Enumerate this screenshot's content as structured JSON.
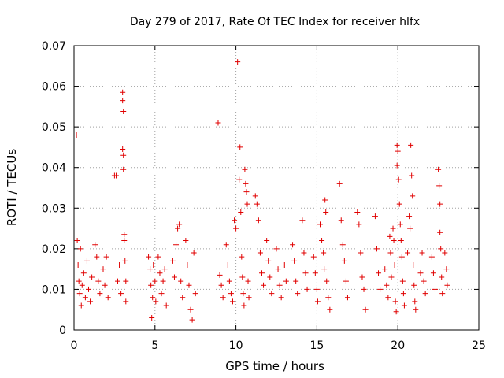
{
  "chart_data": {
    "type": "scatter",
    "title": "Day 279 of 2017, Rate Of TEC Index for receiver hlfx",
    "xlabel": "GPS time / hours",
    "ylabel": "ROTI / TECUs",
    "xlim": [
      0,
      25
    ],
    "ylim": [
      0,
      0.07
    ],
    "xticks": [
      0,
      5,
      10,
      15,
      20,
      25
    ],
    "xtick_labels": [
      "0",
      "5",
      "10",
      "15",
      "20",
      "25"
    ],
    "yticks": [
      0,
      0.01,
      0.02,
      0.03,
      0.04,
      0.05,
      0.06,
      0.07
    ],
    "ytick_labels": [
      "0",
      "0.01",
      "0.02",
      "0.03",
      "0.04",
      "0.05",
      "0.06",
      "0.07"
    ],
    "grid": true,
    "marker": "plus",
    "color": "#e00000",
    "series": [
      {
        "points": [
          [
            0.15,
            0.048
          ],
          [
            0.2,
            0.022
          ],
          [
            0.25,
            0.016
          ],
          [
            0.3,
            0.012
          ],
          [
            0.35,
            0.009
          ],
          [
            0.4,
            0.02
          ],
          [
            0.45,
            0.006
          ],
          [
            0.5,
            0.011
          ],
          [
            0.6,
            0.014
          ],
          [
            0.7,
            0.008
          ],
          [
            0.8,
            0.017
          ],
          [
            0.9,
            0.01
          ],
          [
            1.0,
            0.007
          ],
          [
            1.1,
            0.013
          ],
          [
            1.3,
            0.021
          ],
          [
            1.4,
            0.018
          ],
          [
            1.5,
            0.012
          ],
          [
            1.6,
            0.009
          ],
          [
            1.8,
            0.015
          ],
          [
            1.9,
            0.011
          ],
          [
            2.0,
            0.018
          ],
          [
            2.1,
            0.008
          ],
          [
            2.5,
            0.038
          ],
          [
            2.6,
            0.038
          ],
          [
            2.7,
            0.012
          ],
          [
            2.8,
            0.016
          ],
          [
            2.9,
            0.009
          ],
          [
            3.0,
            0.0585
          ],
          [
            3.0,
            0.0565
          ],
          [
            3.05,
            0.0538
          ],
          [
            3.0,
            0.0445
          ],
          [
            3.05,
            0.043
          ],
          [
            3.05,
            0.0395
          ],
          [
            3.1,
            0.0235
          ],
          [
            3.1,
            0.022
          ],
          [
            3.15,
            0.017
          ],
          [
            3.2,
            0.012
          ],
          [
            3.2,
            0.007
          ],
          [
            4.6,
            0.018
          ],
          [
            4.7,
            0.015
          ],
          [
            4.75,
            0.011
          ],
          [
            4.8,
            0.003
          ],
          [
            4.85,
            0.008
          ],
          [
            4.9,
            0.016
          ],
          [
            5.0,
            0.012
          ],
          [
            5.05,
            0.007
          ],
          [
            5.2,
            0.018
          ],
          [
            5.3,
            0.014
          ],
          [
            5.4,
            0.009
          ],
          [
            5.5,
            0.012
          ],
          [
            5.6,
            0.015
          ],
          [
            5.7,
            0.006
          ],
          [
            6.1,
            0.017
          ],
          [
            6.2,
            0.013
          ],
          [
            6.3,
            0.021
          ],
          [
            6.4,
            0.025
          ],
          [
            6.5,
            0.026
          ],
          [
            6.6,
            0.012
          ],
          [
            6.7,
            0.008
          ],
          [
            6.9,
            0.022
          ],
          [
            7.0,
            0.016
          ],
          [
            7.1,
            0.011
          ],
          [
            7.2,
            0.005
          ],
          [
            7.3,
            0.0025
          ],
          [
            7.4,
            0.019
          ],
          [
            7.5,
            0.009
          ],
          [
            8.9,
            0.051
          ],
          [
            9.0,
            0.0135
          ],
          [
            9.1,
            0.011
          ],
          [
            9.2,
            0.008
          ],
          [
            9.4,
            0.021
          ],
          [
            9.5,
            0.016
          ],
          [
            9.6,
            0.012
          ],
          [
            9.7,
            0.009
          ],
          [
            9.8,
            0.007
          ],
          [
            9.9,
            0.027
          ],
          [
            10.0,
            0.025
          ],
          [
            10.1,
            0.066
          ],
          [
            10.2,
            0.037
          ],
          [
            10.25,
            0.045
          ],
          [
            10.3,
            0.029
          ],
          [
            10.35,
            0.018
          ],
          [
            10.4,
            0.013
          ],
          [
            10.45,
            0.009
          ],
          [
            10.5,
            0.006
          ],
          [
            10.55,
            0.0395
          ],
          [
            10.6,
            0.036
          ],
          [
            10.65,
            0.034
          ],
          [
            10.7,
            0.031
          ],
          [
            10.75,
            0.012
          ],
          [
            10.8,
            0.008
          ],
          [
            11.2,
            0.033
          ],
          [
            11.3,
            0.031
          ],
          [
            11.4,
            0.027
          ],
          [
            11.5,
            0.019
          ],
          [
            11.6,
            0.014
          ],
          [
            11.7,
            0.011
          ],
          [
            11.9,
            0.022
          ],
          [
            12.0,
            0.017
          ],
          [
            12.1,
            0.013
          ],
          [
            12.2,
            0.009
          ],
          [
            12.5,
            0.02
          ],
          [
            12.6,
            0.015
          ],
          [
            12.7,
            0.011
          ],
          [
            12.8,
            0.008
          ],
          [
            13.0,
            0.016
          ],
          [
            13.1,
            0.012
          ],
          [
            13.5,
            0.021
          ],
          [
            13.6,
            0.017
          ],
          [
            13.7,
            0.012
          ],
          [
            13.8,
            0.009
          ],
          [
            14.1,
            0.027
          ],
          [
            14.2,
            0.019
          ],
          [
            14.3,
            0.014
          ],
          [
            14.4,
            0.01
          ],
          [
            14.8,
            0.018
          ],
          [
            14.9,
            0.014
          ],
          [
            15.0,
            0.01
          ],
          [
            15.05,
            0.007
          ],
          [
            15.2,
            0.026
          ],
          [
            15.3,
            0.022
          ],
          [
            15.4,
            0.019
          ],
          [
            15.45,
            0.015
          ],
          [
            15.5,
            0.032
          ],
          [
            15.55,
            0.029
          ],
          [
            15.6,
            0.012
          ],
          [
            15.7,
            0.008
          ],
          [
            15.8,
            0.005
          ],
          [
            16.4,
            0.036
          ],
          [
            16.5,
            0.027
          ],
          [
            16.6,
            0.021
          ],
          [
            16.7,
            0.017
          ],
          [
            16.8,
            0.012
          ],
          [
            16.9,
            0.008
          ],
          [
            17.5,
            0.029
          ],
          [
            17.6,
            0.026
          ],
          [
            17.7,
            0.019
          ],
          [
            17.8,
            0.013
          ],
          [
            17.9,
            0.01
          ],
          [
            18.0,
            0.005
          ],
          [
            18.6,
            0.028
          ],
          [
            18.7,
            0.02
          ],
          [
            18.8,
            0.014
          ],
          [
            18.9,
            0.01
          ],
          [
            19.2,
            0.015
          ],
          [
            19.3,
            0.011
          ],
          [
            19.4,
            0.008
          ],
          [
            19.5,
            0.023
          ],
          [
            19.55,
            0.019
          ],
          [
            19.6,
            0.013
          ],
          [
            19.7,
            0.025
          ],
          [
            19.75,
            0.022
          ],
          [
            19.8,
            0.016
          ],
          [
            19.85,
            0.007
          ],
          [
            19.9,
            0.0045
          ],
          [
            19.95,
            0.0405
          ],
          [
            19.95,
            0.0455
          ],
          [
            20.0,
            0.044
          ],
          [
            20.05,
            0.037
          ],
          [
            20.1,
            0.031
          ],
          [
            20.15,
            0.026
          ],
          [
            20.2,
            0.022
          ],
          [
            20.25,
            0.018
          ],
          [
            20.3,
            0.012
          ],
          [
            20.35,
            0.009
          ],
          [
            20.4,
            0.006
          ],
          [
            20.6,
            0.019
          ],
          [
            20.7,
            0.028
          ],
          [
            20.75,
            0.025
          ],
          [
            20.8,
            0.0455
          ],
          [
            20.85,
            0.038
          ],
          [
            20.9,
            0.033
          ],
          [
            20.95,
            0.016
          ],
          [
            21.0,
            0.011
          ],
          [
            21.05,
            0.007
          ],
          [
            21.1,
            0.005
          ],
          [
            21.4,
            0.014
          ],
          [
            21.5,
            0.019
          ],
          [
            21.6,
            0.012
          ],
          [
            21.7,
            0.009
          ],
          [
            22.1,
            0.018
          ],
          [
            22.2,
            0.014
          ],
          [
            22.3,
            0.01
          ],
          [
            22.5,
            0.0395
          ],
          [
            22.55,
            0.0355
          ],
          [
            22.6,
            0.031
          ],
          [
            22.6,
            0.024
          ],
          [
            22.65,
            0.02
          ],
          [
            22.7,
            0.013
          ],
          [
            22.75,
            0.009
          ],
          [
            22.9,
            0.019
          ],
          [
            23.0,
            0.015
          ],
          [
            23.05,
            0.011
          ]
        ]
      }
    ]
  }
}
